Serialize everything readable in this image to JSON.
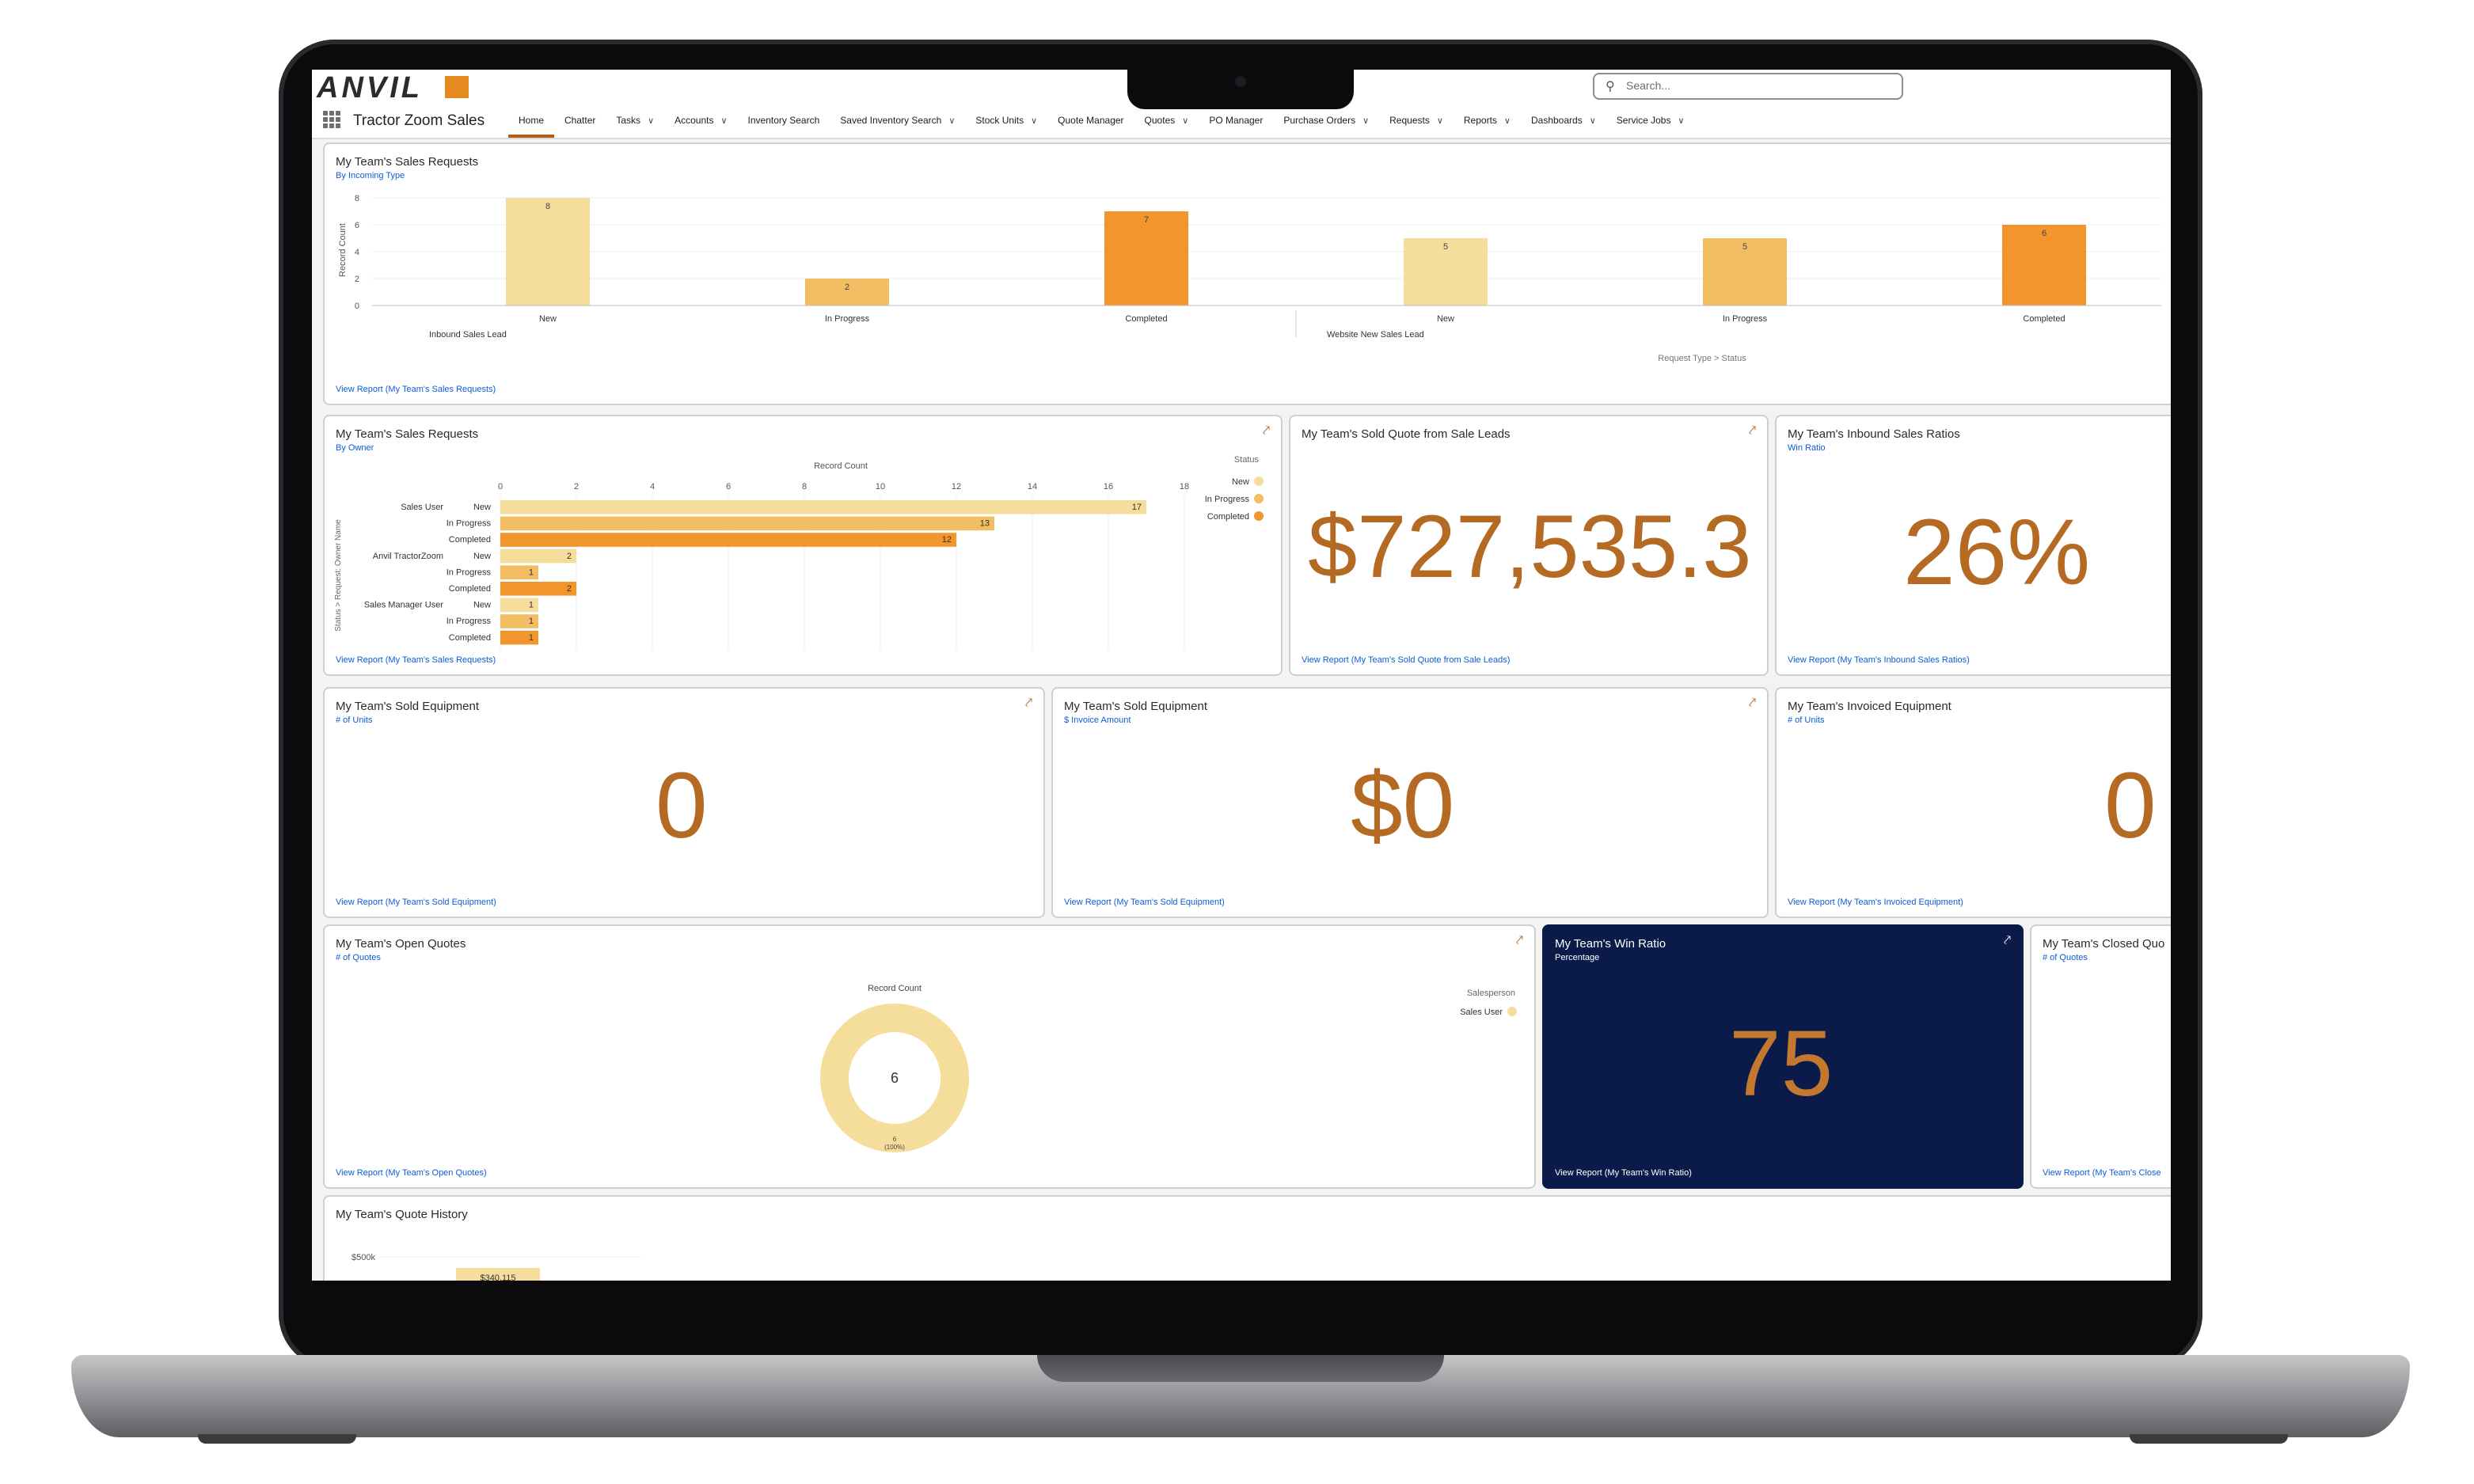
{
  "colors": {
    "new": "#f5dd9c",
    "in_progress": "#f2bd63",
    "completed": "#f2952c",
    "accent": "#b55d17",
    "link": "#0b5cd7",
    "big_number": "#b56a24",
    "dark_card": "#0a1b4a"
  },
  "header": {
    "logo": "ANVIL",
    "search_placeholder": "Search...",
    "app_name": "Tractor Zoom Sales",
    "tabs": [
      {
        "label": "Home",
        "chevron": false
      },
      {
        "label": "Chatter",
        "chevron": false
      },
      {
        "label": "Tasks",
        "chevron": true
      },
      {
        "label": "Accounts",
        "chevron": true
      },
      {
        "label": "Inventory Search",
        "chevron": false
      },
      {
        "label": "Saved Inventory Search",
        "chevron": true
      },
      {
        "label": "Stock Units",
        "chevron": true
      },
      {
        "label": "Quote Manager",
        "chevron": false
      },
      {
        "label": "Quotes",
        "chevron": true
      },
      {
        "label": "PO Manager",
        "chevron": false
      },
      {
        "label": "Purchase Orders",
        "chevron": true
      },
      {
        "label": "Requests",
        "chevron": true
      },
      {
        "label": "Reports",
        "chevron": true
      },
      {
        "label": "Dashboards",
        "chevron": true
      },
      {
        "label": "Service Jobs",
        "chevron": true
      }
    ]
  },
  "cards": {
    "sales_by_type": {
      "title": "My Team's Sales Requests",
      "subtitle": "By Incoming Type",
      "link": "View Report (My Team's Sales Requests)"
    },
    "sales_by_owner": {
      "title": "My Team's Sales Requests",
      "subtitle": "By Owner",
      "link": "View Report (My Team's Sales Requests)"
    },
    "sold_quote": {
      "title": "My Team's Sold Quote from Sale Leads",
      "value": "$727,535.3",
      "link": "View Report (My Team's Sold Quote from Sale Leads)"
    },
    "inbound_ratio": {
      "title": "My Team's Inbound Sales Ratios",
      "subtitle": "Win Ratio",
      "value": "26%",
      "link": "View Report (My Team's Inbound Sales Ratios)"
    },
    "sold_equipment_units": {
      "title": "My Team's Sold Equipment",
      "subtitle": "# of Units",
      "value": "0",
      "link": "View Report (My Team's Sold Equipment)"
    },
    "sold_equipment_amount": {
      "title": "My Team's Sold Equipment",
      "subtitle": "$ Invoice Amount",
      "value": "$0",
      "link": "View Report (My Team's Sold Equipment)"
    },
    "invoiced_equipment": {
      "title": "My Team's Invoiced Equipment",
      "subtitle": "# of Units",
      "value": "0",
      "link": "View Report (My Team's Invoiced Equipment)"
    },
    "open_quotes": {
      "title": "My Team's Open Quotes",
      "subtitle": "# of Quotes",
      "link": "View Report (My Team's Open Quotes)"
    },
    "win_ratio": {
      "title": "My Team's Win Ratio",
      "subtitle": "Percentage",
      "value": "75",
      "link": "View Report (My Team's Win Ratio)"
    },
    "closed_quotes": {
      "title": "My Team's Closed Quo",
      "subtitle": "# of Quotes",
      "link": "View Report (My Team's Close"
    },
    "quote_history": {
      "title": "My Team's Quote History"
    }
  },
  "chart_data": [
    {
      "id": "sales_by_type",
      "type": "bar",
      "ylabel": "Record Count",
      "ylim": [
        0,
        8
      ],
      "yticks": [
        0,
        2,
        4,
        6,
        8
      ],
      "groups": [
        "Inbound Sales Lead",
        "Website New Sales Lead"
      ],
      "categories": [
        "New",
        "In Progress",
        "Completed",
        "New",
        "In Progress",
        "Completed"
      ],
      "values": [
        8,
        2,
        7,
        5,
        5,
        6
      ],
      "footer": "Request Type  >  Status"
    },
    {
      "id": "sales_by_owner",
      "type": "bar",
      "orientation": "horizontal",
      "xlabel": "Record Count",
      "ylabel": "Status  >  Request: Owner Name",
      "xlim": [
        0,
        18
      ],
      "xticks": [
        0,
        2,
        4,
        6,
        8,
        10,
        12,
        14,
        16,
        18
      ],
      "legend_title": "Status",
      "legend": [
        "New",
        "In Progress",
        "Completed"
      ],
      "legend_position": "right",
      "groups": [
        "Sales User",
        "Anvil TractorZoom",
        "Sales Manager User"
      ],
      "rows": [
        {
          "owner": "Sales User",
          "status": "New",
          "value": 17
        },
        {
          "owner": "",
          "status": "In Progress",
          "value": 13
        },
        {
          "owner": "",
          "status": "Completed",
          "value": 12
        },
        {
          "owner": "Anvil TractorZoom",
          "status": "New",
          "value": 2
        },
        {
          "owner": "",
          "status": "In Progress",
          "value": 1
        },
        {
          "owner": "",
          "status": "Completed",
          "value": 2
        },
        {
          "owner": "Sales Manager User",
          "status": "New",
          "value": 1
        },
        {
          "owner": "",
          "status": "In Progress",
          "value": 1
        },
        {
          "owner": "",
          "status": "Completed",
          "value": 1
        }
      ]
    },
    {
      "id": "open_quotes",
      "type": "pie",
      "title": "Record Count",
      "legend_title": "Salesperson",
      "legend": [
        "Sales User"
      ],
      "total": "6",
      "slices": [
        {
          "label": "Sales User",
          "value": 6,
          "label_text": "6",
          "pct_text": "(100%)"
        }
      ]
    },
    {
      "id": "quote_history",
      "type": "bar",
      "ytick_label": "$500k",
      "values": [
        340115
      ],
      "data_labels": [
        "$340,115"
      ]
    }
  ]
}
